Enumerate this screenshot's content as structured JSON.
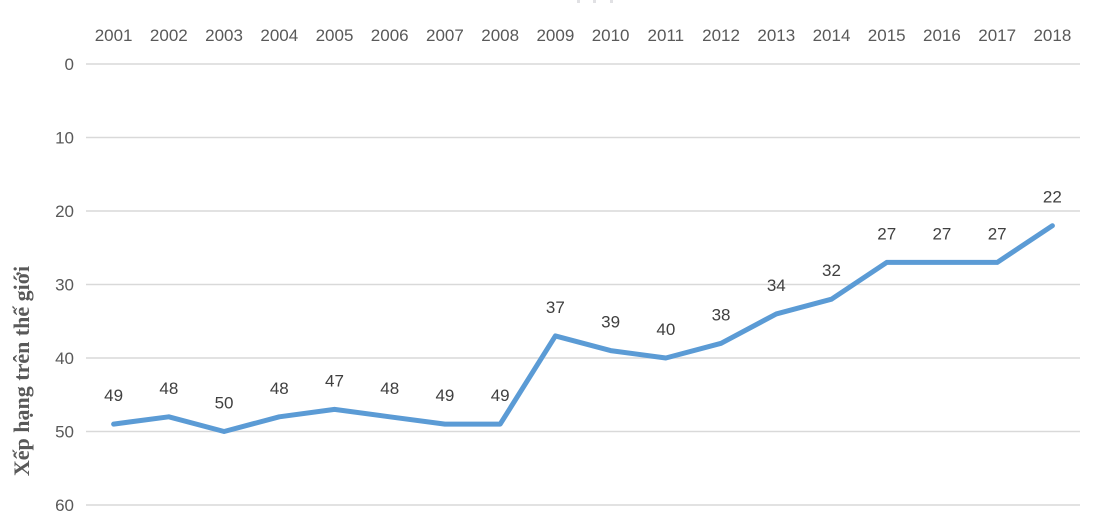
{
  "chart_data": {
    "type": "line",
    "categories": [
      "2001",
      "2002",
      "2003",
      "2004",
      "2005",
      "2006",
      "2007",
      "2008",
      "2009",
      "2010",
      "2011",
      "2012",
      "2013",
      "2014",
      "2015",
      "2016",
      "2017",
      "2018"
    ],
    "values": [
      49,
      48,
      50,
      48,
      47,
      48,
      49,
      49,
      37,
      39,
      40,
      38,
      34,
      32,
      27,
      27,
      27,
      22
    ],
    "title": "",
    "xlabel": "",
    "ylabel": "Xếp hạng trên thế giới",
    "ylim": [
      0,
      60
    ],
    "yticks": [
      0,
      10,
      20,
      30,
      40,
      50,
      60
    ],
    "y_axis_reversed": true,
    "x_axis_position": "top",
    "grid": true,
    "legend": "none",
    "data_labels": true,
    "colors": {
      "line": "#5B9BD5",
      "gridline": "#D9D9D9",
      "axis_text": "#595959",
      "data_label_text": "#404040",
      "background": "#FFFFFF"
    }
  }
}
